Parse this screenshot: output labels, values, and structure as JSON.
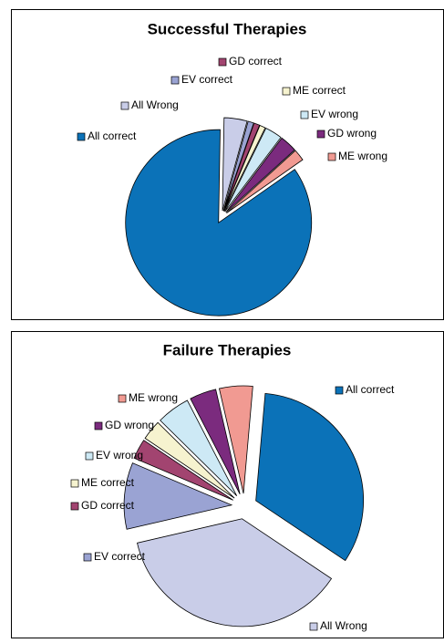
{
  "chart_data": [
    {
      "type": "pie",
      "title": "Successful Therapies",
      "categories": [
        "All correct",
        "All Wrong",
        "EV correct",
        "GD correct",
        "ME correct",
        "EV wrong",
        "GD wrong",
        "ME wrong"
      ],
      "values": [
        85,
        4,
        1,
        1,
        1,
        3,
        3,
        2
      ],
      "colors": [
        "#0b72b8",
        "#c9cde8",
        "#9aa3d3",
        "#a24470",
        "#f6f3cf",
        "#cde9f5",
        "#7b2b7e",
        "#f19a92"
      ]
    },
    {
      "type": "pie",
      "title": "Failure Therapies",
      "categories": [
        "All correct",
        "All Wrong",
        "EV correct",
        "GD correct",
        "ME correct",
        "EV wrong",
        "GD wrong",
        "ME wrong"
      ],
      "values": [
        33,
        37,
        10,
        3,
        3,
        5,
        4,
        5
      ],
      "colors": [
        "#0b72b8",
        "#c9cde8",
        "#9aa3d3",
        "#a24470",
        "#f6f3cf",
        "#cde9f5",
        "#7b2b7e",
        "#f19a92"
      ]
    }
  ]
}
